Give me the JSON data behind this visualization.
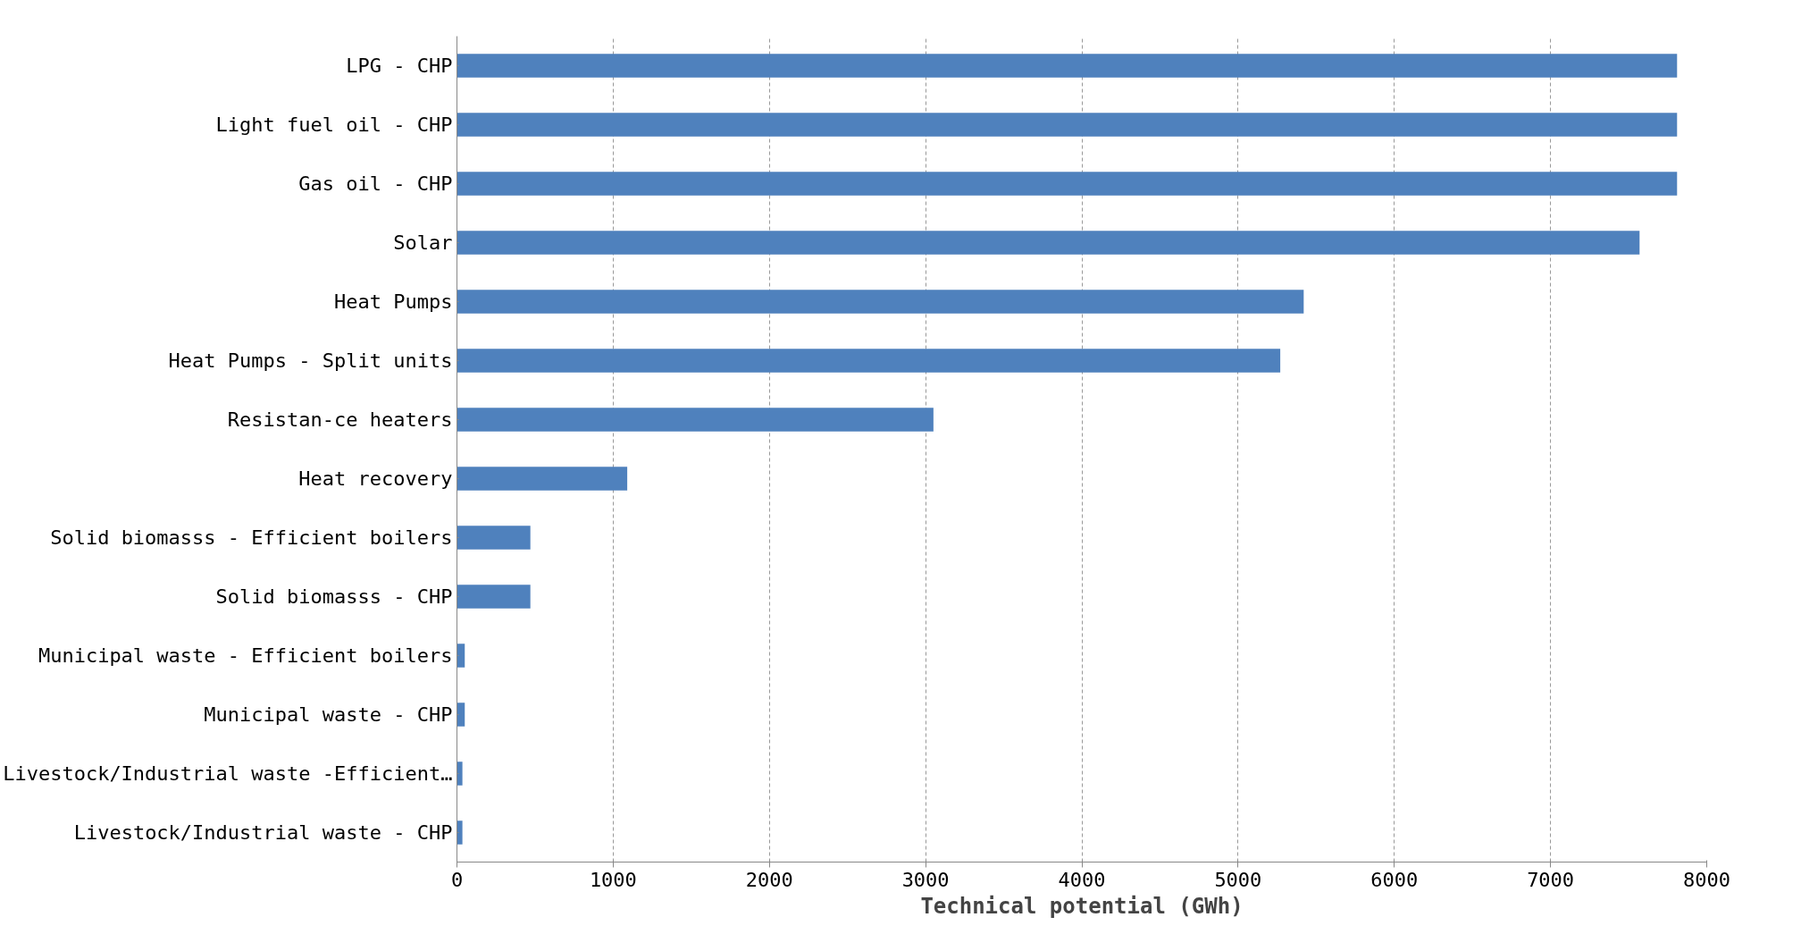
{
  "chart_data": {
    "type": "bar",
    "orientation": "horizontal",
    "xlabel": "Technical potential (GWh)",
    "categories": [
      "LPG - CHP",
      "Light fuel oil - CHP",
      "Gas oil - CHP",
      "Solar",
      "Heat Pumps",
      "Heat Pumps - Split units",
      "Resistan-ce heaters",
      "Heat recovery",
      "Solid biomasss - Efficient boilers",
      "Solid biomasss - CHP",
      "Municipal waste - Efficient boilers",
      "Municipal waste - CHP",
      "Livestock/Industrial waste -Efficient…",
      "Livestock/Industrial waste - CHP"
    ],
    "values": [
      7810,
      7810,
      7810,
      7570,
      5420,
      5270,
      3050,
      1090,
      470,
      470,
      50,
      50,
      35,
      35
    ],
    "color": "#4f81bd",
    "xlim": [
      0,
      8000
    ],
    "xticks": [
      0,
      1000,
      2000,
      3000,
      4000,
      5000,
      6000,
      7000,
      8000
    ],
    "grid": "x"
  }
}
